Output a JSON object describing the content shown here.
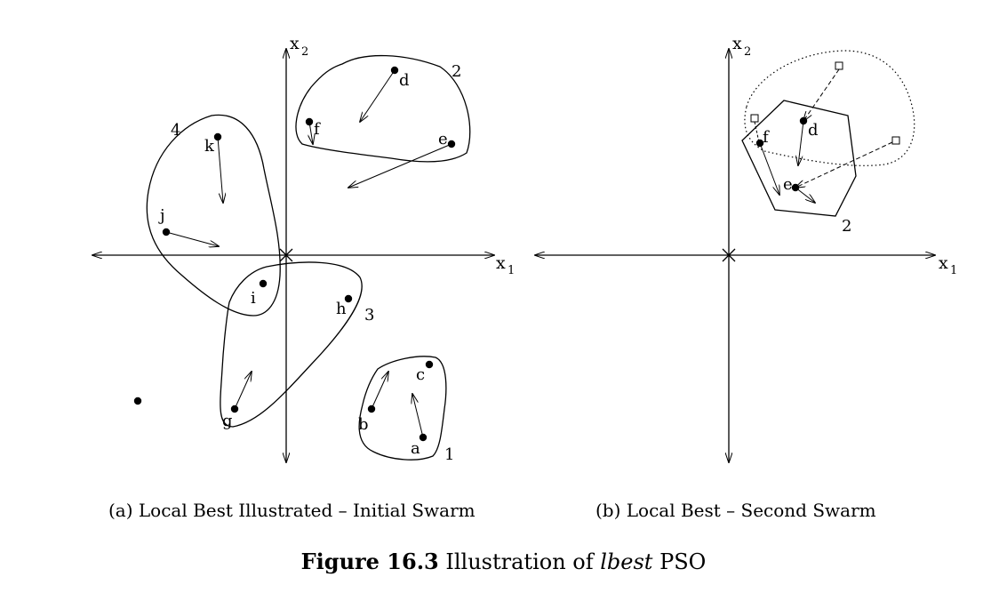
{
  "panel_a": {
    "axis_x_label": "x",
    "axis_x_sub": "1",
    "axis_y_label": "x",
    "axis_y_sub": "2",
    "particles": [
      "a",
      "b",
      "c",
      "d",
      "e",
      "f",
      "g",
      "h",
      "i",
      "j",
      "k"
    ],
    "neighborhoods": [
      "1",
      "2",
      "3",
      "4"
    ],
    "caption": "(a) Local Best Illustrated – Initial Swarm"
  },
  "panel_b": {
    "axis_x_label": "x",
    "axis_x_sub": "1",
    "axis_y_label": "x",
    "axis_y_sub": "2",
    "particles": [
      "d",
      "e",
      "f"
    ],
    "neighborhoods": [
      "2"
    ],
    "caption": "(b) Local Best – Second Swarm"
  },
  "figure": {
    "number": "Figure 16.3",
    "text_before": "Illustration of",
    "emph": "lbest",
    "text_after": "PSO"
  }
}
